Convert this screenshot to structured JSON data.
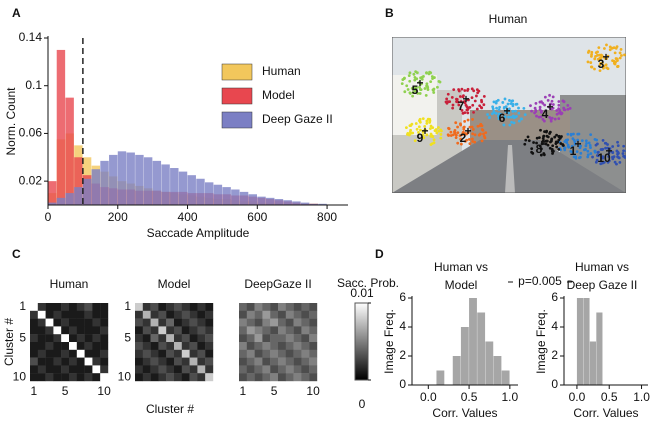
{
  "panel_labels": [
    "A",
    "B",
    "C",
    "D"
  ],
  "image": {
    "title": "Human",
    "clusters": [
      {
        "label": "1",
        "color": "#2a7fd4"
      },
      {
        "label": "2",
        "color": "#f06a1e"
      },
      {
        "label": "3",
        "color": "#f0b020"
      },
      {
        "label": "4",
        "color": "#9b3fb5"
      },
      {
        "label": "5",
        "color": "#8fd14f"
      },
      {
        "label": "6",
        "color": "#3ab0e8"
      },
      {
        "label": "7",
        "color": "#c8203a"
      },
      {
        "label": "8",
        "color": "#111111"
      },
      {
        "label": "9",
        "color": "#f0e020"
      },
      {
        "label": "10",
        "color": "#3050b0"
      }
    ]
  },
  "chart_data": [
    {
      "type": "histogram",
      "xlabel": "Saccade Amplitude",
      "ylabel": "Norm. Count",
      "xlim": [
        0,
        860
      ],
      "ylim": [
        0,
        0.14
      ],
      "xticks": [
        0,
        200,
        400,
        600,
        800
      ],
      "yticks": [
        0.02,
        0.06,
        0.1,
        0.14
      ],
      "vline": 100,
      "bins": [
        0,
        25,
        50,
        75,
        100,
        125,
        150,
        175,
        200,
        225,
        250,
        275,
        300,
        325,
        350,
        375,
        400,
        425,
        450,
        475,
        500,
        525,
        550,
        575,
        600,
        625,
        650,
        675,
        700,
        725,
        750,
        775,
        800,
        825,
        850
      ],
      "series": [
        {
          "name": "Human",
          "color": "#f2c75c",
          "values": [
            0.01,
            0.055,
            0.06,
            0.05,
            0.04,
            0.033,
            0.028,
            0.024,
            0.02,
            0.018,
            0.016,
            0.014,
            0.012,
            0.011,
            0.01,
            0.009,
            0.008,
            0.007,
            0.006,
            0.005,
            0.005,
            0.004,
            0.003,
            0.003,
            0.002,
            0.002,
            0.002,
            0.001,
            0.001,
            0.001,
            0.001,
            0,
            0,
            0
          ]
        },
        {
          "name": "Model",
          "color": "#e8474f",
          "values": [
            0.02,
            0.13,
            0.09,
            0.04,
            0.025,
            0.018,
            0.015,
            0.014,
            0.013,
            0.013,
            0.012,
            0.012,
            0.012,
            0.011,
            0.011,
            0.011,
            0.01,
            0.01,
            0.01,
            0.009,
            0.009,
            0.008,
            0.008,
            0.007,
            0.006,
            0.005,
            0.004,
            0.003,
            0.002,
            0.001,
            0.001,
            0,
            0,
            0
          ]
        },
        {
          "name": "Deep Gaze II",
          "color": "#7b7fc4",
          "values": [
            0.002,
            0.006,
            0.01,
            0.015,
            0.022,
            0.03,
            0.037,
            0.042,
            0.045,
            0.044,
            0.042,
            0.04,
            0.037,
            0.034,
            0.031,
            0.028,
            0.025,
            0.022,
            0.019,
            0.017,
            0.015,
            0.013,
            0.011,
            0.009,
            0.007,
            0.006,
            0.005,
            0.004,
            0.003,
            0.002,
            0.001,
            0.001,
            0,
            0
          ]
        }
      ]
    },
    {
      "type": "heatmap",
      "xlabel": "Cluster #",
      "ylabel": "Cluster #",
      "xticks": [
        1,
        5,
        10
      ],
      "yticks": [
        1,
        5,
        10
      ],
      "colorbar_label": "Sacc. Prob.",
      "clim": [
        0,
        0.01
      ],
      "cticks": [
        0,
        0.01
      ],
      "panels": [
        {
          "title": "Human",
          "values": [
            [
              0.01,
              0.002,
              0.001,
              0.001,
              0.002,
              0.001,
              0.002,
              0.003,
              0.001,
              0.001
            ],
            [
              0.002,
              0.01,
              0.001,
              0.002,
              0.001,
              0.001,
              0.001,
              0.002,
              0.001,
              0.001
            ],
            [
              0.001,
              0.002,
              0.01,
              0.001,
              0.002,
              0.001,
              0.001,
              0.001,
              0.002,
              0.001
            ],
            [
              0.001,
              0.001,
              0.002,
              0.01,
              0.001,
              0.002,
              0.001,
              0.001,
              0.001,
              0.002
            ],
            [
              0.002,
              0.001,
              0.001,
              0.002,
              0.01,
              0.001,
              0.002,
              0.001,
              0.002,
              0.001
            ],
            [
              0.001,
              0.001,
              0.002,
              0.001,
              0.001,
              0.01,
              0.001,
              0.002,
              0.001,
              0.001
            ],
            [
              0.001,
              0.002,
              0.001,
              0.001,
              0.002,
              0.001,
              0.01,
              0.001,
              0.001,
              0.002
            ],
            [
              0.003,
              0.001,
              0.001,
              0.002,
              0.001,
              0.002,
              0.001,
              0.01,
              0.002,
              0.001
            ],
            [
              0.001,
              0.002,
              0.001,
              0.001,
              0.002,
              0.001,
              0.001,
              0.001,
              0.01,
              0.002
            ],
            [
              0.001,
              0.001,
              0.002,
              0.001,
              0.001,
              0.002,
              0.001,
              0.002,
              0.001,
              0.01
            ]
          ]
        },
        {
          "title": "Model",
          "values": [
            [
              0.008,
              0.002,
              0.003,
              0.001,
              0.002,
              0.003,
              0.002,
              0.001,
              0.002,
              0.001
            ],
            [
              0.002,
              0.007,
              0.002,
              0.003,
              0.001,
              0.002,
              0.003,
              0.002,
              0.001,
              0.002
            ],
            [
              0.003,
              0.002,
              0.007,
              0.002,
              0.004,
              0.001,
              0.002,
              0.003,
              0.002,
              0.001
            ],
            [
              0.001,
              0.003,
              0.002,
              0.008,
              0.002,
              0.003,
              0.001,
              0.002,
              0.003,
              0.002
            ],
            [
              0.002,
              0.001,
              0.004,
              0.002,
              0.007,
              0.002,
              0.003,
              0.001,
              0.002,
              0.003
            ],
            [
              0.003,
              0.002,
              0.001,
              0.003,
              0.002,
              0.007,
              0.002,
              0.003,
              0.001,
              0.002
            ],
            [
              0.002,
              0.003,
              0.002,
              0.001,
              0.003,
              0.002,
              0.008,
              0.002,
              0.003,
              0.001
            ],
            [
              0.001,
              0.002,
              0.003,
              0.002,
              0.001,
              0.003,
              0.002,
              0.007,
              0.002,
              0.003
            ],
            [
              0.002,
              0.001,
              0.002,
              0.003,
              0.002,
              0.001,
              0.003,
              0.002,
              0.007,
              0.002
            ],
            [
              0.001,
              0.002,
              0.001,
              0.002,
              0.003,
              0.002,
              0.001,
              0.003,
              0.002,
              0.008
            ]
          ]
        },
        {
          "title": "DeepGaze II",
          "values": [
            [
              0.004,
              0.003,
              0.005,
              0.004,
              0.003,
              0.005,
              0.004,
              0.003,
              0.004,
              0.003
            ],
            [
              0.003,
              0.005,
              0.004,
              0.006,
              0.004,
              0.003,
              0.005,
              0.004,
              0.003,
              0.004
            ],
            [
              0.005,
              0.004,
              0.003,
              0.005,
              0.006,
              0.004,
              0.003,
              0.005,
              0.004,
              0.003
            ],
            [
              0.004,
              0.006,
              0.005,
              0.004,
              0.003,
              0.005,
              0.004,
              0.003,
              0.005,
              0.004
            ],
            [
              0.003,
              0.004,
              0.006,
              0.003,
              0.004,
              0.004,
              0.005,
              0.004,
              0.003,
              0.005
            ],
            [
              0.005,
              0.003,
              0.004,
              0.005,
              0.004,
              0.003,
              0.004,
              0.005,
              0.004,
              0.003
            ],
            [
              0.004,
              0.005,
              0.003,
              0.004,
              0.005,
              0.004,
              0.003,
              0.004,
              0.005,
              0.004
            ],
            [
              0.003,
              0.004,
              0.005,
              0.003,
              0.004,
              0.005,
              0.004,
              0.003,
              0.004,
              0.005
            ],
            [
              0.004,
              0.003,
              0.004,
              0.005,
              0.003,
              0.004,
              0.005,
              0.004,
              0.003,
              0.004
            ],
            [
              0.003,
              0.004,
              0.003,
              0.004,
              0.005,
              0.003,
              0.004,
              0.005,
              0.004,
              0.003
            ]
          ]
        }
      ]
    },
    {
      "type": "histogram",
      "title_lines": [
        "Human vs",
        "Model"
      ],
      "annotation": "p=0.005",
      "xlabel": "Corr. Values",
      "ylabel": "Image Freq.",
      "color": "#a6a6a6",
      "xlim": [
        -0.2,
        1.1
      ],
      "ylim": [
        0,
        6
      ],
      "yticks": [
        0,
        2,
        4,
        6
      ],
      "xticks": [
        {
          "value": 0,
          "label": "0.0"
        },
        {
          "value": 0.5,
          "label": "0.5"
        },
        {
          "value": 1,
          "label": "1.0"
        }
      ],
      "bins": [
        0,
        0.1,
        0.2,
        0.3,
        0.4,
        0.5,
        0.6,
        0.7,
        0.8,
        0.9,
        1.0
      ],
      "values": [
        0,
        1,
        0,
        2,
        4,
        6,
        5,
        3,
        2,
        1
      ]
    },
    {
      "type": "histogram",
      "title_lines": [
        "Human vs",
        "Deep Gaze II"
      ],
      "xlabel": "Corr. Values",
      "ylabel": "Image Freq.",
      "color": "#a6a6a6",
      "xlim": [
        -0.2,
        1.1
      ],
      "ylim": [
        0,
        6
      ],
      "yticks": [
        0,
        2,
        4,
        6
      ],
      "xticks": [
        {
          "value": 0,
          "label": "0.0"
        },
        {
          "value": 0.5,
          "label": "0.5"
        },
        {
          "value": 1,
          "label": "1.0"
        }
      ],
      "bins": [
        0,
        0.1,
        0.2,
        0.3,
        0.4
      ],
      "values": [
        6,
        6,
        3,
        5
      ]
    }
  ]
}
